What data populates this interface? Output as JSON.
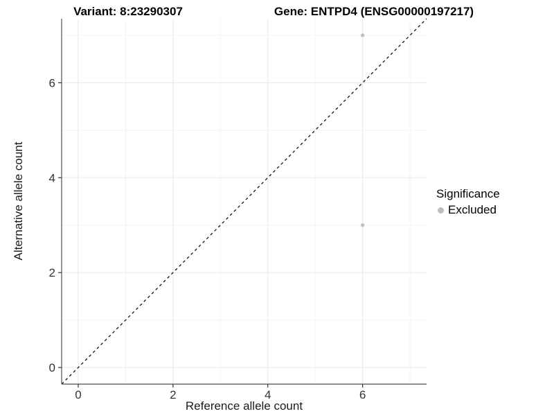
{
  "chart_data": {
    "type": "scatter",
    "title_left": "Variant: 8:23290307",
    "title_right": "Gene: ENTPD4 (ENSG00000197217)",
    "xlabel": "Reference allele count",
    "ylabel": "Alternative allele count",
    "xlim": [
      -0.35,
      7.35
    ],
    "ylim": [
      -0.35,
      7.35
    ],
    "x_major_ticks": [
      0,
      2,
      4,
      6
    ],
    "y_major_ticks": [
      0,
      2,
      4,
      6
    ],
    "x_minor_ticks": [
      1,
      3,
      5,
      7
    ],
    "y_minor_ticks": [
      1,
      3,
      5,
      7
    ],
    "grid": true,
    "series": [
      {
        "name": "Excluded",
        "color": "#bdbdbd",
        "points": [
          {
            "x": 6,
            "y": 7
          },
          {
            "x": 6,
            "y": 3
          }
        ]
      }
    ],
    "reference_line": {
      "type": "identity",
      "slope": 1,
      "intercept": 0,
      "style": "dashed",
      "color": "#000000"
    },
    "legend": {
      "title": "Significance",
      "position": "right",
      "items": [
        {
          "label": "Excluded",
          "color": "#bdbdbd"
        }
      ]
    },
    "colors": {
      "background": "#ffffff",
      "grid_major": "#e8e8e8",
      "grid_minor": "#f4f4f4",
      "axis_line": "#4d4d4d",
      "tick_mark": "#333333",
      "tick_label": "#333333",
      "point": "#bdbdbd"
    }
  }
}
